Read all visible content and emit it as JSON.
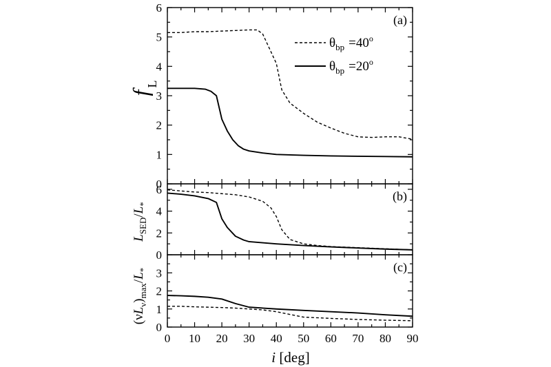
{
  "chart_data": [
    {
      "type": "line",
      "panel_label": "(a)",
      "ylabel_main": "f",
      "ylabel_sub": "L",
      "xlim": [
        0,
        90
      ],
      "ylim": [
        0,
        6
      ],
      "yticks": [
        "0",
        "1",
        "2",
        "3",
        "4",
        "5",
        "6"
      ],
      "legend": [
        {
          "symbol": "θ",
          "sub": "bp",
          "value": "=40",
          "sup": "o",
          "style": "dashed"
        },
        {
          "symbol": "θ",
          "sub": "bp",
          "value": "=20",
          "sup": "o",
          "style": "solid"
        }
      ],
      "series": [
        {
          "style": "dashed",
          "x": [
            0,
            5,
            10,
            15,
            20,
            25,
            30,
            33,
            35,
            38,
            40,
            42,
            45,
            50,
            55,
            60,
            65,
            70,
            75,
            80,
            85,
            90
          ],
          "y": [
            5.15,
            5.15,
            5.18,
            5.18,
            5.2,
            5.22,
            5.24,
            5.24,
            5.1,
            4.5,
            4.1,
            3.2,
            2.75,
            2.4,
            2.1,
            1.9,
            1.72,
            1.6,
            1.58,
            1.6,
            1.6,
            1.52
          ]
        },
        {
          "style": "solid",
          "x": [
            0,
            5,
            10,
            14,
            16,
            18,
            20,
            22,
            24,
            26,
            28,
            30,
            35,
            40,
            50,
            60,
            70,
            80,
            90
          ],
          "y": [
            3.25,
            3.25,
            3.25,
            3.22,
            3.15,
            3.0,
            2.2,
            1.8,
            1.5,
            1.3,
            1.18,
            1.12,
            1.05,
            1.0,
            0.97,
            0.95,
            0.94,
            0.93,
            0.92
          ]
        }
      ]
    },
    {
      "type": "line",
      "panel_label": "(b)",
      "ylabel": "L_SED/L_*",
      "xlim": [
        0,
        90
      ],
      "ylim": [
        0,
        6.5
      ],
      "yticks": [
        "0",
        "2",
        "4",
        "6"
      ],
      "series": [
        {
          "style": "dashed",
          "x": [
            0,
            5,
            10,
            15,
            20,
            25,
            30,
            35,
            38,
            40,
            42,
            45,
            50,
            55,
            60,
            70,
            80,
            90
          ],
          "y": [
            5.95,
            5.85,
            5.75,
            5.7,
            5.6,
            5.5,
            5.3,
            4.9,
            4.3,
            3.5,
            2.3,
            1.4,
            1.0,
            0.85,
            0.75,
            0.65,
            0.55,
            0.45
          ]
        },
        {
          "style": "solid",
          "x": [
            0,
            5,
            10,
            15,
            18,
            20,
            22,
            25,
            28,
            30,
            35,
            40,
            50,
            60,
            70,
            80,
            90
          ],
          "y": [
            5.65,
            5.55,
            5.4,
            5.15,
            4.8,
            3.3,
            2.5,
            1.7,
            1.35,
            1.2,
            1.1,
            1.0,
            0.85,
            0.72,
            0.62,
            0.52,
            0.45
          ]
        }
      ]
    },
    {
      "type": "line",
      "panel_label": "(c)",
      "ylabel": "(νL_ν)_max/L_*",
      "xlim": [
        0,
        90
      ],
      "ylim": [
        0,
        4
      ],
      "yticks": [
        "0",
        "1",
        "2",
        "3"
      ],
      "xticks": [
        "0",
        "10",
        "20",
        "30",
        "40",
        "50",
        "60",
        "70",
        "80",
        "90"
      ],
      "xlabel_main": "i",
      "xlabel_unit": " [deg]",
      "series": [
        {
          "style": "dashed",
          "x": [
            0,
            5,
            10,
            15,
            20,
            25,
            30,
            35,
            40,
            45,
            50,
            60,
            70,
            80,
            90
          ],
          "y": [
            1.15,
            1.15,
            1.12,
            1.1,
            1.08,
            1.05,
            1.0,
            0.95,
            0.85,
            0.7,
            0.55,
            0.48,
            0.42,
            0.38,
            0.35
          ]
        },
        {
          "style": "solid",
          "x": [
            0,
            5,
            10,
            15,
            20,
            25,
            30,
            40,
            50,
            60,
            70,
            80,
            90
          ],
          "y": [
            1.75,
            1.73,
            1.7,
            1.65,
            1.55,
            1.3,
            1.1,
            1.0,
            0.92,
            0.85,
            0.78,
            0.68,
            0.6
          ]
        }
      ]
    }
  ]
}
